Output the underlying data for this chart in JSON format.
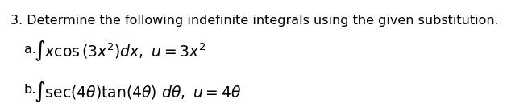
{
  "title_text": "3. Determine the following indefinite integrals using the given substitution.",
  "line_a_label": "a.",
  "line_b_label": "b.",
  "line_a_math": "$\\int x\\cos\\left(3x^2\\right)dx,\\ u = 3x^2$",
  "line_b_math": "$\\int \\sec(4\\theta)\\tan(4\\theta)\\ d\\theta,\\ u = 4\\theta$",
  "bg_color": "#ffffff",
  "text_color": "#000000",
  "title_fontsize": 11.5,
  "math_fontsize": 13.5,
  "label_fontsize": 11.5
}
